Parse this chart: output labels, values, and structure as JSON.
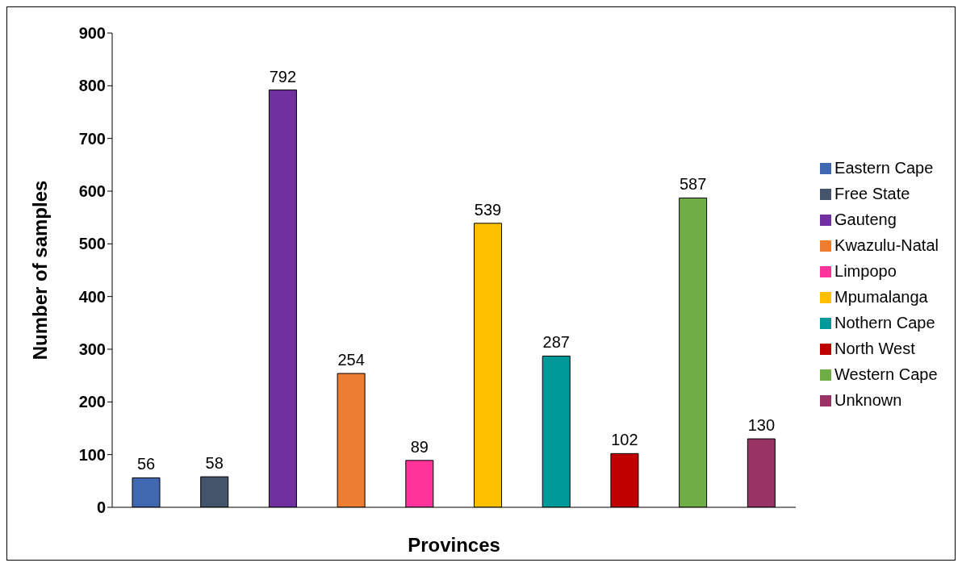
{
  "chart_data": {
    "type": "bar",
    "xlabel": "Provinces",
    "ylabel": "Number of samples",
    "categories": [
      null,
      null,
      null,
      null,
      null,
      null,
      null,
      null,
      null,
      null
    ],
    "series": [
      {
        "name": "Eastern Cape",
        "color": "#4068b0",
        "values": [
          56,
          null,
          null,
          null,
          null,
          null,
          null,
          null,
          null,
          null
        ]
      },
      {
        "name": "Free State",
        "color": "#44546a",
        "values": [
          null,
          58,
          null,
          null,
          null,
          null,
          null,
          null,
          null,
          null
        ]
      },
      {
        "name": "Gauteng",
        "color": "#7030a0",
        "values": [
          null,
          null,
          792,
          null,
          null,
          null,
          null,
          null,
          null,
          null
        ]
      },
      {
        "name": "Kwazulu-Natal",
        "color": "#ed7d31",
        "values": [
          null,
          null,
          null,
          254,
          null,
          null,
          null,
          null,
          null,
          null
        ]
      },
      {
        "name": "Limpopo",
        "color": "#ff3399",
        "values": [
          null,
          null,
          null,
          null,
          89,
          null,
          null,
          null,
          null,
          null
        ]
      },
      {
        "name": "Mpumalanga",
        "color": "#ffc000",
        "values": [
          null,
          null,
          null,
          null,
          null,
          539,
          null,
          null,
          null,
          null
        ]
      },
      {
        "name": "Nothern Cape",
        "color": "#009999",
        "values": [
          null,
          null,
          null,
          null,
          null,
          null,
          287,
          null,
          null,
          null
        ]
      },
      {
        "name": "North West",
        "color": "#c00000",
        "values": [
          null,
          null,
          null,
          null,
          null,
          null,
          null,
          102,
          null,
          null
        ]
      },
      {
        "name": "Western Cape",
        "color": "#70ad47",
        "values": [
          null,
          null,
          null,
          null,
          null,
          null,
          null,
          null,
          587,
          null
        ]
      },
      {
        "name": "Unknown",
        "color": "#993366",
        "values": [
          null,
          null,
          null,
          null,
          null,
          null,
          null,
          null,
          null,
          130
        ]
      }
    ],
    "stacked": true,
    "ylim": [
      0,
      900
    ],
    "yticks": [
      0,
      100,
      200,
      300,
      400,
      500,
      600,
      700,
      800,
      900
    ],
    "tick_labels": "y",
    "data_labels": true,
    "grid": false,
    "legend": "right"
  }
}
